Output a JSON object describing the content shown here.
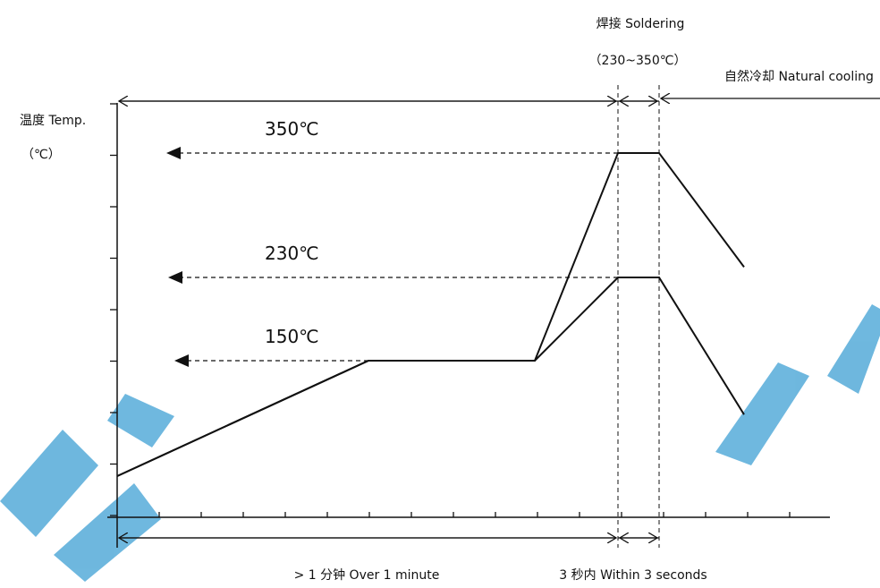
{
  "chart_data": {
    "type": "line",
    "title": "",
    "ylabel": "温度 Temp.",
    "yunit": "（℃）",
    "xlabel": "",
    "series": [
      {
        "name": "",
        "points": [
          [
            0,
            0
          ],
          [
            6,
            150
          ],
          [
            10,
            150
          ],
          [
            12,
            350
          ],
          [
            13,
            350
          ],
          [
            15,
            240
          ]
        ]
      },
      {
        "name": "",
        "points": [
          [
            0,
            0
          ],
          [
            6,
            150
          ],
          [
            10,
            150
          ],
          [
            12,
            230
          ],
          [
            13,
            230
          ],
          [
            15,
            80
          ]
        ]
      }
    ],
    "reference_lines": [
      {
        "label": "350℃",
        "value": 350
      },
      {
        "label": "230℃",
        "value": 230
      },
      {
        "label": "150℃",
        "value": 150
      }
    ],
    "phases": [
      {
        "label": "> 1 分钟 Over 1 minute"
      },
      {
        "label": "3 秒内 Within 3 seconds"
      },
      {
        "label": "焊接 Soldering",
        "sublabel": "（230~350℃）"
      },
      {
        "label": "自然冷却 Natural cooling"
      }
    ],
    "watermark": "XINGYING",
    "colors": {
      "line": "#111111",
      "watermark": "#67b4dd"
    }
  }
}
